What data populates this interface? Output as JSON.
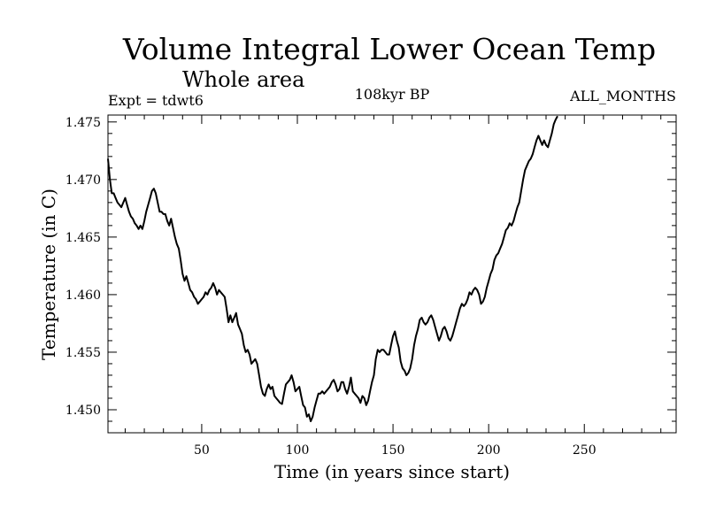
{
  "chart_data": {
    "type": "line",
    "title": "Volume Integral Lower Ocean Temp",
    "subtitle": "Whole area",
    "annotations": {
      "left": "Expt = tdwt6",
      "center": "108kyr BP",
      "right": "ALL_MONTHS"
    },
    "xlabel": "Time (in years since start)",
    "ylabel": "Temperature (in C)",
    "xlim": [
      1,
      298
    ],
    "ylim": [
      1.448,
      1.4756
    ],
    "x_ticks": [
      50,
      100,
      150,
      200,
      250
    ],
    "y_ticks": [
      1.45,
      1.455,
      1.46,
      1.465,
      1.47,
      1.475
    ],
    "y_tick_labels": [
      "1.450",
      "1.455",
      "1.460",
      "1.465",
      "1.470",
      "1.475"
    ],
    "grid": false,
    "series": [
      {
        "name": "Temperature",
        "color": "#000000",
        "points": [
          [
            1,
            1.4718
          ],
          [
            2,
            1.47
          ],
          [
            3,
            1.4688
          ],
          [
            4,
            1.4688
          ],
          [
            5,
            1.4684
          ],
          [
            6,
            1.468
          ],
          [
            7,
            1.4678
          ],
          [
            8,
            1.4676
          ],
          [
            9,
            1.468
          ],
          [
            10,
            1.4684
          ],
          [
            11,
            1.4678
          ],
          [
            12,
            1.4672
          ],
          [
            13,
            1.4668
          ],
          [
            14,
            1.4666
          ],
          [
            15,
            1.4662
          ],
          [
            16,
            1.466
          ],
          [
            17,
            1.4657
          ],
          [
            18,
            1.466
          ],
          [
            19,
            1.4657
          ],
          [
            20,
            1.4664
          ],
          [
            21,
            1.4672
          ],
          [
            22,
            1.4678
          ],
          [
            23,
            1.4684
          ],
          [
            24,
            1.469
          ],
          [
            25,
            1.4692
          ],
          [
            26,
            1.4688
          ],
          [
            27,
            1.468
          ],
          [
            28,
            1.4672
          ],
          [
            29,
            1.4672
          ],
          [
            30,
            1.467
          ],
          [
            31,
            1.467
          ],
          [
            32,
            1.4664
          ],
          [
            33,
            1.466
          ],
          [
            34,
            1.4666
          ],
          [
            35,
            1.4658
          ],
          [
            36,
            1.465
          ],
          [
            37,
            1.4644
          ],
          [
            38,
            1.464
          ],
          [
            39,
            1.463
          ],
          [
            40,
            1.4618
          ],
          [
            41,
            1.4612
          ],
          [
            42,
            1.4616
          ],
          [
            43,
            1.461
          ],
          [
            44,
            1.4604
          ],
          [
            45,
            1.4602
          ],
          [
            46,
            1.4598
          ],
          [
            47,
            1.4596
          ],
          [
            48,
            1.4592
          ],
          [
            49,
            1.4594
          ],
          [
            50,
            1.4596
          ],
          [
            51,
            1.4598
          ],
          [
            52,
            1.4602
          ],
          [
            53,
            1.46
          ],
          [
            54,
            1.4604
          ],
          [
            55,
            1.4606
          ],
          [
            56,
            1.461
          ],
          [
            57,
            1.4606
          ],
          [
            58,
            1.46
          ],
          [
            59,
            1.4604
          ],
          [
            60,
            1.4602
          ],
          [
            61,
            1.46
          ],
          [
            62,
            1.4598
          ],
          [
            63,
            1.4588
          ],
          [
            64,
            1.4576
          ],
          [
            65,
            1.4582
          ],
          [
            66,
            1.4576
          ],
          [
            67,
            1.458
          ],
          [
            68,
            1.4584
          ],
          [
            69,
            1.4574
          ],
          [
            70,
            1.457
          ],
          [
            71,
            1.4566
          ],
          [
            72,
            1.4556
          ],
          [
            73,
            1.455
          ],
          [
            74,
            1.4552
          ],
          [
            75,
            1.4548
          ],
          [
            76,
            1.454
          ],
          [
            77,
            1.4542
          ],
          [
            78,
            1.4544
          ],
          [
            79,
            1.454
          ],
          [
            80,
            1.453
          ],
          [
            81,
            1.452
          ],
          [
            82,
            1.4514
          ],
          [
            83,
            1.4512
          ],
          [
            84,
            1.4518
          ],
          [
            85,
            1.4522
          ],
          [
            86,
            1.4518
          ],
          [
            87,
            1.452
          ],
          [
            88,
            1.4512
          ],
          [
            89,
            1.451
          ],
          [
            90,
            1.4508
          ],
          [
            91,
            1.4506
          ],
          [
            92,
            1.4505
          ],
          [
            93,
            1.4514
          ],
          [
            94,
            1.4522
          ],
          [
            95,
            1.4524
          ],
          [
            96,
            1.4526
          ],
          [
            97,
            1.453
          ],
          [
            98,
            1.4524
          ],
          [
            99,
            1.4516
          ],
          [
            100,
            1.4518
          ],
          [
            101,
            1.452
          ],
          [
            102,
            1.4512
          ],
          [
            103,
            1.4504
          ],
          [
            104,
            1.4502
          ],
          [
            105,
            1.4494
          ],
          [
            106,
            1.4496
          ],
          [
            107,
            1.449
          ],
          [
            108,
            1.4494
          ],
          [
            109,
            1.4502
          ],
          [
            110,
            1.4508
          ],
          [
            111,
            1.4514
          ],
          [
            112,
            1.4514
          ],
          [
            113,
            1.4516
          ],
          [
            114,
            1.4514
          ],
          [
            115,
            1.4516
          ],
          [
            116,
            1.4518
          ],
          [
            117,
            1.452
          ],
          [
            118,
            1.4524
          ],
          [
            119,
            1.4526
          ],
          [
            120,
            1.4522
          ],
          [
            121,
            1.4516
          ],
          [
            122,
            1.4518
          ],
          [
            123,
            1.4524
          ],
          [
            124,
            1.4524
          ],
          [
            125,
            1.4518
          ],
          [
            126,
            1.4514
          ],
          [
            127,
            1.452
          ],
          [
            128,
            1.4528
          ],
          [
            129,
            1.4516
          ],
          [
            130,
            1.4514
          ],
          [
            131,
            1.4512
          ],
          [
            132,
            1.451
          ],
          [
            133,
            1.4506
          ],
          [
            134,
            1.4512
          ],
          [
            135,
            1.451
          ],
          [
            136,
            1.4504
          ],
          [
            137,
            1.4508
          ],
          [
            138,
            1.4516
          ],
          [
            139,
            1.4524
          ],
          [
            140,
            1.453
          ],
          [
            141,
            1.4544
          ],
          [
            142,
            1.4552
          ],
          [
            143,
            1.455
          ],
          [
            144,
            1.4552
          ],
          [
            145,
            1.4552
          ],
          [
            146,
            1.455
          ],
          [
            147,
            1.4548
          ],
          [
            148,
            1.4548
          ],
          [
            149,
            1.4556
          ],
          [
            150,
            1.4564
          ],
          [
            151,
            1.4568
          ],
          [
            152,
            1.456
          ],
          [
            153,
            1.4554
          ],
          [
            154,
            1.4542
          ],
          [
            155,
            1.4536
          ],
          [
            156,
            1.4534
          ],
          [
            157,
            1.453
          ],
          [
            158,
            1.4532
          ],
          [
            159,
            1.4536
          ],
          [
            160,
            1.4544
          ],
          [
            161,
            1.4556
          ],
          [
            162,
            1.4564
          ],
          [
            163,
            1.457
          ],
          [
            164,
            1.4578
          ],
          [
            165,
            1.458
          ],
          [
            166,
            1.4576
          ],
          [
            167,
            1.4574
          ],
          [
            168,
            1.4576
          ],
          [
            169,
            1.458
          ],
          [
            170,
            1.4582
          ],
          [
            171,
            1.4578
          ],
          [
            172,
            1.4572
          ],
          [
            173,
            1.4566
          ],
          [
            174,
            1.456
          ],
          [
            175,
            1.4564
          ],
          [
            176,
            1.457
          ],
          [
            177,
            1.4572
          ],
          [
            178,
            1.4568
          ],
          [
            179,
            1.4562
          ],
          [
            180,
            1.456
          ],
          [
            181,
            1.4564
          ],
          [
            182,
            1.457
          ],
          [
            183,
            1.4576
          ],
          [
            184,
            1.4582
          ],
          [
            185,
            1.4588
          ],
          [
            186,
            1.4592
          ],
          [
            187,
            1.459
          ],
          [
            188,
            1.4592
          ],
          [
            189,
            1.4596
          ],
          [
            190,
            1.4602
          ],
          [
            191,
            1.46
          ],
          [
            192,
            1.4604
          ],
          [
            193,
            1.4606
          ],
          [
            194,
            1.4604
          ],
          [
            195,
            1.46
          ],
          [
            196,
            1.4592
          ],
          [
            197,
            1.4594
          ],
          [
            198,
            1.4598
          ],
          [
            199,
            1.4606
          ],
          [
            200,
            1.4612
          ],
          [
            201,
            1.4618
          ],
          [
            202,
            1.4622
          ],
          [
            203,
            1.463
          ],
          [
            204,
            1.4634
          ],
          [
            205,
            1.4636
          ],
          [
            206,
            1.464
          ],
          [
            207,
            1.4644
          ],
          [
            208,
            1.465
          ],
          [
            209,
            1.4656
          ],
          [
            210,
            1.4658
          ],
          [
            211,
            1.4662
          ],
          [
            212,
            1.466
          ],
          [
            213,
            1.4664
          ],
          [
            214,
            1.467
          ],
          [
            215,
            1.4676
          ],
          [
            216,
            1.468
          ],
          [
            217,
            1.469
          ],
          [
            218,
            1.47
          ],
          [
            219,
            1.4708
          ],
          [
            220,
            1.4712
          ],
          [
            221,
            1.4716
          ],
          [
            222,
            1.4718
          ],
          [
            223,
            1.4722
          ],
          [
            224,
            1.4728
          ],
          [
            225,
            1.4734
          ],
          [
            226,
            1.4738
          ],
          [
            227,
            1.4734
          ],
          [
            228,
            1.473
          ],
          [
            229,
            1.4734
          ],
          [
            230,
            1.473
          ],
          [
            231,
            1.4728
          ],
          [
            232,
            1.4734
          ],
          [
            233,
            1.474
          ],
          [
            234,
            1.4748
          ],
          [
            235,
            1.4752
          ],
          [
            236,
            1.4755
          ]
        ]
      }
    ]
  }
}
